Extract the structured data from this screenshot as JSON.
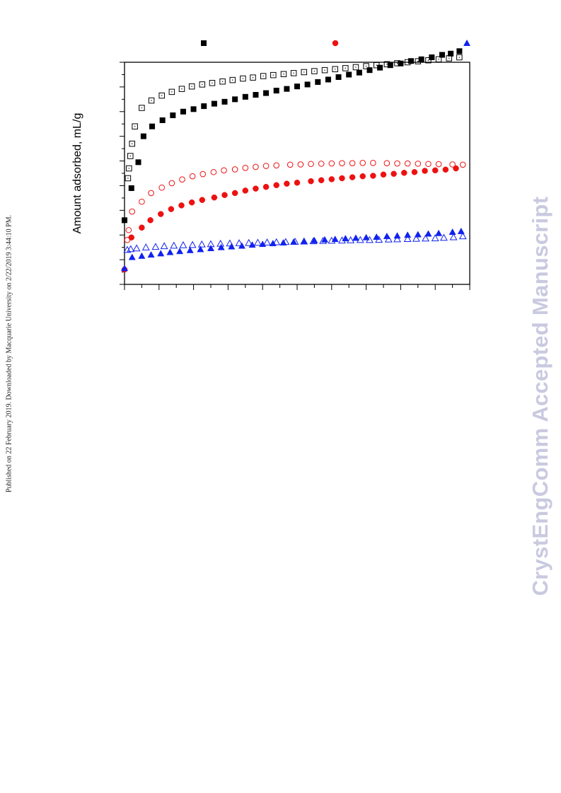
{
  "side_note": "Published on 22 February 2019. Downloaded by Macquarie University on 2/22/2019 3:44:10 PM.",
  "watermark": "CrystEngComm Accepted Manuscript",
  "chart_data": {
    "type": "scatter",
    "title": "",
    "xlabel": "",
    "ylabel": "Amount adsorbed, mL/g",
    "xlim": [
      0,
      1
    ],
    "ylim": [
      0,
      9
    ],
    "grid": false,
    "legend": "top",
    "legend_entries": [
      "",
      "",
      ""
    ],
    "colors": {
      "black": "#000000",
      "red": "#ee1111",
      "blue": "#1122ee"
    },
    "series": [
      {
        "marker": "square",
        "filled": true,
        "color": "#000000",
        "points": [
          [
            0.0,
            2.6
          ],
          [
            0.02,
            3.9
          ],
          [
            0.04,
            4.95
          ],
          [
            0.055,
            6.0
          ],
          [
            0.08,
            6.4
          ],
          [
            0.11,
            6.65
          ],
          [
            0.14,
            6.85
          ],
          [
            0.17,
            7.0
          ],
          [
            0.2,
            7.1
          ],
          [
            0.23,
            7.22
          ],
          [
            0.26,
            7.32
          ],
          [
            0.29,
            7.4
          ],
          [
            0.32,
            7.5
          ],
          [
            0.35,
            7.6
          ],
          [
            0.38,
            7.68
          ],
          [
            0.41,
            7.75
          ],
          [
            0.44,
            7.85
          ],
          [
            0.47,
            7.92
          ],
          [
            0.5,
            8.02
          ],
          [
            0.53,
            8.1
          ],
          [
            0.56,
            8.2
          ],
          [
            0.59,
            8.3
          ],
          [
            0.62,
            8.4
          ],
          [
            0.65,
            8.5
          ],
          [
            0.68,
            8.58
          ],
          [
            0.71,
            8.68
          ],
          [
            0.74,
            8.78
          ],
          [
            0.77,
            8.88
          ],
          [
            0.8,
            8.95
          ],
          [
            0.83,
            9.05
          ],
          [
            0.86,
            9.12
          ],
          [
            0.89,
            9.2
          ],
          [
            0.92,
            9.3
          ],
          [
            0.945,
            9.35
          ],
          [
            0.97,
            9.45
          ]
        ]
      },
      {
        "marker": "square",
        "filled": false,
        "color": "#000000",
        "points": [
          [
            0.01,
            4.3
          ],
          [
            0.013,
            4.7
          ],
          [
            0.017,
            5.2
          ],
          [
            0.022,
            5.7
          ],
          [
            0.03,
            6.4
          ],
          [
            0.05,
            7.15
          ],
          [
            0.078,
            7.45
          ],
          [
            0.108,
            7.65
          ],
          [
            0.137,
            7.8
          ],
          [
            0.166,
            7.92
          ],
          [
            0.195,
            8.02
          ],
          [
            0.225,
            8.1
          ],
          [
            0.254,
            8.16
          ],
          [
            0.284,
            8.22
          ],
          [
            0.313,
            8.28
          ],
          [
            0.343,
            8.34
          ],
          [
            0.372,
            8.38
          ],
          [
            0.402,
            8.44
          ],
          [
            0.431,
            8.48
          ],
          [
            0.461,
            8.52
          ],
          [
            0.49,
            8.56
          ],
          [
            0.52,
            8.6
          ],
          [
            0.55,
            8.64
          ],
          [
            0.58,
            8.68
          ],
          [
            0.61,
            8.72
          ],
          [
            0.64,
            8.76
          ],
          [
            0.67,
            8.8
          ],
          [
            0.7,
            8.84
          ],
          [
            0.73,
            8.88
          ],
          [
            0.76,
            8.92
          ],
          [
            0.79,
            8.96
          ],
          [
            0.82,
            9.0
          ],
          [
            0.85,
            9.04
          ],
          [
            0.88,
            9.08
          ],
          [
            0.91,
            9.12
          ],
          [
            0.94,
            9.16
          ],
          [
            0.97,
            9.2
          ]
        ]
      },
      {
        "marker": "circle",
        "filled": true,
        "color": "#ee1111",
        "points": [
          [
            0.0,
            0.6
          ],
          [
            0.02,
            1.9
          ],
          [
            0.05,
            2.3
          ],
          [
            0.075,
            2.6
          ],
          [
            0.105,
            2.85
          ],
          [
            0.135,
            3.05
          ],
          [
            0.165,
            3.2
          ],
          [
            0.195,
            3.32
          ],
          [
            0.225,
            3.42
          ],
          [
            0.26,
            3.52
          ],
          [
            0.29,
            3.62
          ],
          [
            0.32,
            3.7
          ],
          [
            0.35,
            3.8
          ],
          [
            0.38,
            3.88
          ],
          [
            0.41,
            3.95
          ],
          [
            0.44,
            4.02
          ],
          [
            0.47,
            4.08
          ],
          [
            0.5,
            4.12
          ],
          [
            0.54,
            4.18
          ],
          [
            0.57,
            4.22
          ],
          [
            0.6,
            4.26
          ],
          [
            0.63,
            4.3
          ],
          [
            0.66,
            4.34
          ],
          [
            0.69,
            4.38
          ],
          [
            0.72,
            4.4
          ],
          [
            0.75,
            4.45
          ],
          [
            0.78,
            4.48
          ],
          [
            0.81,
            4.52
          ],
          [
            0.84,
            4.55
          ],
          [
            0.87,
            4.6
          ],
          [
            0.9,
            4.62
          ],
          [
            0.93,
            4.65
          ],
          [
            0.96,
            4.7
          ]
        ]
      },
      {
        "marker": "circle",
        "filled": false,
        "color": "#ee1111",
        "points": [
          [
            0.008,
            1.8
          ],
          [
            0.012,
            2.2
          ],
          [
            0.022,
            2.95
          ],
          [
            0.05,
            3.35
          ],
          [
            0.077,
            3.7
          ],
          [
            0.108,
            3.92
          ],
          [
            0.137,
            4.1
          ],
          [
            0.167,
            4.25
          ],
          [
            0.197,
            4.38
          ],
          [
            0.227,
            4.47
          ],
          [
            0.258,
            4.55
          ],
          [
            0.288,
            4.62
          ],
          [
            0.32,
            4.66
          ],
          [
            0.35,
            4.72
          ],
          [
            0.38,
            4.76
          ],
          [
            0.41,
            4.8
          ],
          [
            0.44,
            4.82
          ],
          [
            0.48,
            4.85
          ],
          [
            0.51,
            4.86
          ],
          [
            0.54,
            4.88
          ],
          [
            0.57,
            4.89
          ],
          [
            0.6,
            4.9
          ],
          [
            0.63,
            4.91
          ],
          [
            0.66,
            4.91
          ],
          [
            0.69,
            4.92
          ],
          [
            0.72,
            4.92
          ],
          [
            0.76,
            4.91
          ],
          [
            0.79,
            4.9
          ],
          [
            0.82,
            4.9
          ],
          [
            0.85,
            4.89
          ],
          [
            0.88,
            4.88
          ],
          [
            0.91,
            4.87
          ],
          [
            0.95,
            4.86
          ],
          [
            0.98,
            4.85
          ]
        ]
      },
      {
        "marker": "triangle",
        "filled": true,
        "color": "#1122ee",
        "points": [
          [
            0.0,
            0.65
          ],
          [
            0.022,
            1.1
          ],
          [
            0.05,
            1.15
          ],
          [
            0.077,
            1.2
          ],
          [
            0.105,
            1.25
          ],
          [
            0.132,
            1.3
          ],
          [
            0.16,
            1.34
          ],
          [
            0.19,
            1.38
          ],
          [
            0.22,
            1.42
          ],
          [
            0.25,
            1.46
          ],
          [
            0.28,
            1.5
          ],
          [
            0.31,
            1.53
          ],
          [
            0.34,
            1.56
          ],
          [
            0.37,
            1.6
          ],
          [
            0.4,
            1.63
          ],
          [
            0.43,
            1.66
          ],
          [
            0.46,
            1.69
          ],
          [
            0.49,
            1.72
          ],
          [
            0.52,
            1.75
          ],
          [
            0.55,
            1.78
          ],
          [
            0.58,
            1.81
          ],
          [
            0.61,
            1.83
          ],
          [
            0.64,
            1.86
          ],
          [
            0.67,
            1.88
          ],
          [
            0.7,
            1.9
          ],
          [
            0.73,
            1.92
          ],
          [
            0.76,
            1.95
          ],
          [
            0.79,
            1.97
          ],
          [
            0.82,
            2.0
          ],
          [
            0.85,
            2.02
          ],
          [
            0.88,
            2.05
          ],
          [
            0.91,
            2.07
          ],
          [
            0.95,
            2.12
          ],
          [
            0.975,
            2.15
          ]
        ]
      },
      {
        "marker": "triangle",
        "filled": false,
        "color": "#1122ee",
        "points": [
          [
            0.008,
            1.4
          ],
          [
            0.018,
            1.43
          ],
          [
            0.035,
            1.46
          ],
          [
            0.062,
            1.5
          ],
          [
            0.09,
            1.52
          ],
          [
            0.115,
            1.55
          ],
          [
            0.143,
            1.57
          ],
          [
            0.17,
            1.59
          ],
          [
            0.197,
            1.6
          ],
          [
            0.224,
            1.62
          ],
          [
            0.25,
            1.63
          ],
          [
            0.278,
            1.65
          ],
          [
            0.305,
            1.66
          ],
          [
            0.332,
            1.67
          ],
          [
            0.36,
            1.68
          ],
          [
            0.386,
            1.69
          ],
          [
            0.413,
            1.7
          ],
          [
            0.44,
            1.71
          ],
          [
            0.467,
            1.72
          ],
          [
            0.494,
            1.73
          ],
          [
            0.52,
            1.74
          ],
          [
            0.547,
            1.75
          ],
          [
            0.575,
            1.76
          ],
          [
            0.6,
            1.77
          ],
          [
            0.63,
            1.78
          ],
          [
            0.655,
            1.79
          ],
          [
            0.683,
            1.8
          ],
          [
            0.71,
            1.8
          ],
          [
            0.737,
            1.81
          ],
          [
            0.765,
            1.82
          ],
          [
            0.79,
            1.83
          ],
          [
            0.82,
            1.84
          ],
          [
            0.845,
            1.85
          ],
          [
            0.872,
            1.86
          ],
          [
            0.9,
            1.87
          ],
          [
            0.925,
            1.89
          ],
          [
            0.953,
            1.91
          ],
          [
            0.98,
            1.95
          ]
        ]
      }
    ]
  }
}
